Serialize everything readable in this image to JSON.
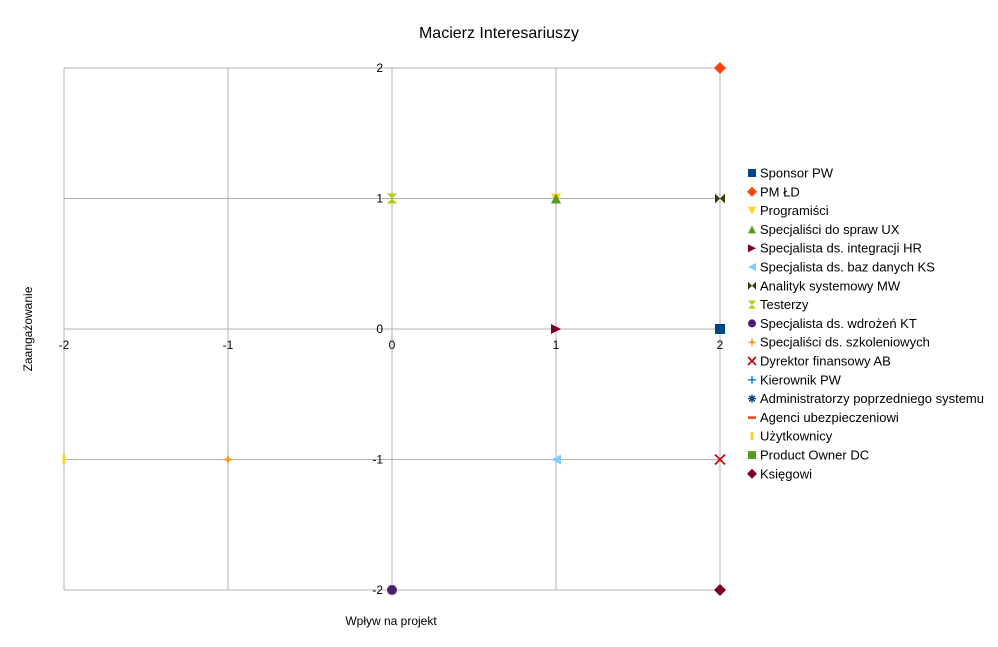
{
  "chart_data": {
    "type": "scatter",
    "title": "Macierz Interesariuszy",
    "xlabel": "Wpływ na projekt",
    "ylabel": "Zaangażowanie",
    "xlim": [
      -2,
      2
    ],
    "ylim": [
      -2,
      2
    ],
    "x_ticks": [
      "-2",
      "-1",
      "0",
      "1",
      "2"
    ],
    "y_ticks": [
      "-2",
      "-1",
      "0",
      "1",
      "2"
    ],
    "grid": true,
    "legend_position": "right",
    "series": [
      {
        "name": "Sponsor PW",
        "marker": "square",
        "color": "#004586",
        "points": [
          [
            2,
            0
          ]
        ]
      },
      {
        "name": "PM ŁD",
        "marker": "diamond",
        "color": "#ff420e",
        "points": [
          [
            2,
            2
          ]
        ]
      },
      {
        "name": "Programiści",
        "marker": "triangle-down",
        "color": "#ffd320",
        "points": [
          [
            1,
            1
          ]
        ]
      },
      {
        "name": "Specjaliści do spraw UX",
        "marker": "triangle-up",
        "color": "#579d1c",
        "points": [
          [
            1,
            1
          ]
        ]
      },
      {
        "name": "Specjalista ds. integracji HR",
        "marker": "triangle-right",
        "color": "#7e0021",
        "points": [
          [
            1,
            0
          ]
        ]
      },
      {
        "name": "Specjalista ds. baz danych KS",
        "marker": "triangle-left",
        "color": "#83caff",
        "points": [
          [
            1,
            -1
          ]
        ]
      },
      {
        "name": "Analityk systemowy MW",
        "marker": "bowtie",
        "color": "#314004",
        "points": [
          [
            2,
            1
          ]
        ]
      },
      {
        "name": "Testerzy",
        "marker": "hourglass",
        "color": "#aecf00",
        "points": [
          [
            0,
            1
          ]
        ]
      },
      {
        "name": "Specjalista ds. wdrożeń KT",
        "marker": "circle",
        "color": "#4b1f6f",
        "points": [
          [
            0,
            -2
          ]
        ]
      },
      {
        "name": "Specjaliści ds. szkoleniowych",
        "marker": "star",
        "color": "#ff950e",
        "points": [
          [
            -1,
            -1
          ]
        ]
      },
      {
        "name": "Dyrektor finansowy AB",
        "marker": "x",
        "color": "#c5000b",
        "points": [
          [
            2,
            -1
          ]
        ]
      },
      {
        "name": "Kierownik PW",
        "marker": "plus",
        "color": "#0084d1",
        "points": []
      },
      {
        "name": "Administratorzy poprzedniego systemu",
        "marker": "asterisk",
        "color": "#004586",
        "points": []
      },
      {
        "name": "Agenci ubezpieczeniowi",
        "marker": "hbar",
        "color": "#ff420e",
        "points": []
      },
      {
        "name": "Użytkownicy",
        "marker": "vbar",
        "color": "#ffd320",
        "points": [
          [
            -2,
            -1
          ]
        ]
      },
      {
        "name": "Product Owner DC",
        "marker": "square",
        "color": "#579d1c",
        "points": []
      },
      {
        "name": "Księgowi",
        "marker": "diamond",
        "color": "#7e0021",
        "points": [
          [
            2,
            -2
          ]
        ]
      }
    ]
  }
}
